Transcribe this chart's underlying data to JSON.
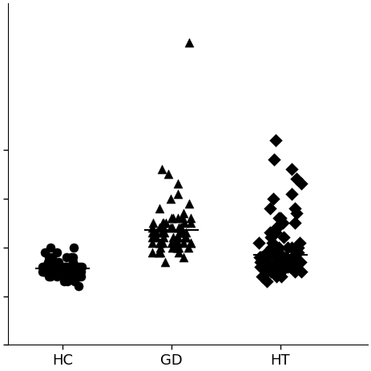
{
  "groups": [
    "HC",
    "GD",
    "HT"
  ],
  "group_positions": [
    1,
    2,
    3
  ],
  "markers": [
    "o",
    "^",
    "D"
  ],
  "marker_size": 8,
  "marker_color": "black",
  "background_color": "white",
  "ylim": [
    0,
    7
  ],
  "yticks": [
    0,
    1,
    2,
    3,
    4
  ],
  "yticklabels": [
    "",
    "",
    "",
    "",
    ""
  ],
  "HC_data": [
    1.5,
    1.6,
    1.7,
    1.5,
    1.6,
    1.8,
    1.5,
    1.4,
    1.6,
    1.7,
    1.6,
    1.8,
    1.5,
    1.4,
    1.6,
    1.7,
    1.5,
    1.6,
    1.5,
    1.6,
    1.4,
    1.5,
    1.6,
    1.5,
    1.6,
    1.7,
    1.8,
    1.5,
    1.6,
    1.6,
    1.5,
    1.4,
    1.5,
    1.7,
    1.6,
    1.6,
    1.5,
    1.5,
    1.6,
    1.6,
    1.5,
    1.5,
    1.4,
    1.6,
    1.6,
    1.5,
    1.5,
    1.7,
    1.6,
    1.6,
    1.8,
    1.5,
    1.5,
    1.6,
    1.6,
    1.7,
    1.4,
    1.5,
    1.6,
    1.5,
    1.3,
    1.3,
    1.4,
    1.2,
    1.5,
    1.6,
    1.5,
    1.6,
    1.3,
    1.4,
    1.9,
    2.0,
    1.9,
    1.8,
    2.0,
    1.4,
    1.5
  ],
  "HC_median": 1.57,
  "GD_data": [
    2.0,
    2.1,
    2.3,
    1.9,
    2.2,
    2.4,
    2.6,
    2.1,
    2.3,
    2.5,
    2.0,
    2.2,
    2.4,
    2.1,
    2.3,
    2.5,
    1.9,
    2.2,
    2.4,
    2.1,
    2.3,
    2.5,
    2.6,
    2.7,
    2.8,
    2.9,
    3.0,
    3.1,
    2.0,
    2.1,
    2.3,
    2.2,
    2.4,
    2.5,
    2.6,
    2.1,
    2.3,
    2.2,
    2.4,
    2.1,
    1.9,
    2.0,
    2.2,
    2.3,
    2.4,
    2.5,
    2.6,
    2.1,
    2.2,
    2.3,
    1.7,
    1.8,
    1.9,
    2.0,
    2.1,
    2.2,
    2.3,
    2.4,
    2.0,
    2.1,
    2.2,
    2.3,
    2.4,
    2.5,
    2.6,
    3.3,
    3.5,
    3.6,
    6.2
  ],
  "GD_median": 2.35,
  "HT_data": [
    1.6,
    1.7,
    1.8,
    1.5,
    1.6,
    1.7,
    1.9,
    1.8,
    1.6,
    1.7,
    1.8,
    1.9,
    2.0,
    1.7,
    1.8,
    1.9,
    1.6,
    1.7,
    2.0,
    2.1,
    2.2,
    2.3,
    2.4,
    2.5,
    2.6,
    2.8,
    3.0,
    3.3,
    1.5,
    1.6,
    1.7,
    1.8,
    1.9,
    1.6,
    1.7,
    1.8,
    1.5,
    1.6,
    1.7,
    1.8,
    1.9,
    2.0,
    1.6,
    1.7,
    1.8,
    1.9,
    1.5,
    1.6,
    1.7,
    1.8,
    1.9,
    2.0,
    2.1,
    2.2,
    1.6,
    1.7,
    1.8,
    1.9,
    2.0,
    3.8,
    4.2,
    3.6,
    3.4,
    3.1,
    2.3,
    2.4,
    2.5,
    2.6,
    2.7,
    2.8,
    1.4,
    1.5,
    1.6,
    1.7,
    1.8,
    1.4,
    1.5,
    1.6,
    1.7,
    1.8,
    1.3,
    1.4,
    1.5,
    1.6,
    1.7,
    1.8,
    1.9,
    2.0,
    2.1
  ],
  "HT_median": 1.85
}
